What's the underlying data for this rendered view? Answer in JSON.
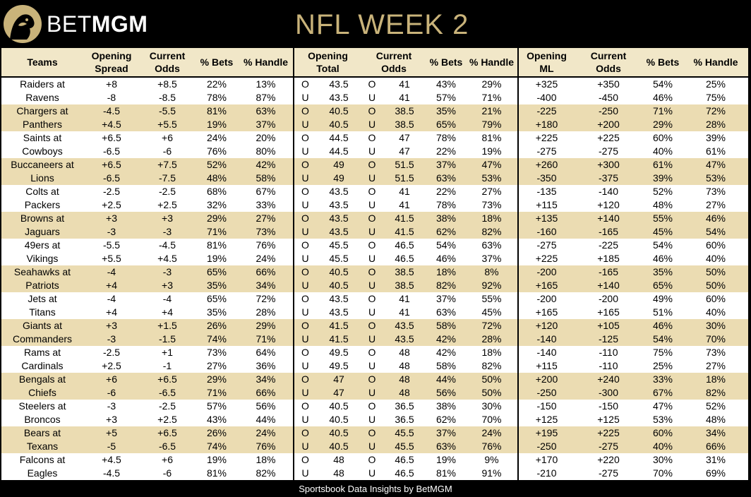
{
  "header": {
    "brand_light": "BET",
    "brand_bold": "MGM",
    "title": "NFL WEEK 2"
  },
  "colors": {
    "tan": "#ebdcb2",
    "header_bg": "#f1e7c8",
    "gold": "#c9b37a"
  },
  "columns": [
    [
      "Teams"
    ],
    [
      "Opening",
      "Spread"
    ],
    [
      "Current",
      "Odds"
    ],
    [
      "% Bets"
    ],
    [
      "% Handle"
    ],
    [
      "Opening",
      "Total"
    ],
    [
      "Current",
      "Odds"
    ],
    [
      "% Bets"
    ],
    [
      "% Handle"
    ],
    [
      "Opening",
      "ML"
    ],
    [
      "Current",
      "Odds"
    ],
    [
      "% Bets"
    ],
    [
      "% Handle"
    ]
  ],
  "rows": [
    [
      "Raiders at",
      "+8",
      "+8.5",
      "22%",
      "13%",
      "O",
      "43.5",
      "O",
      "41",
      "43%",
      "29%",
      "+325",
      "+350",
      "54%",
      "25%"
    ],
    [
      "Ravens",
      "-8",
      "-8.5",
      "78%",
      "87%",
      "U",
      "43.5",
      "U",
      "41",
      "57%",
      "71%",
      "-400",
      "-450",
      "46%",
      "75%"
    ],
    [
      "Chargers at",
      "-4.5",
      "-5.5",
      "81%",
      "63%",
      "O",
      "40.5",
      "O",
      "38.5",
      "35%",
      "21%",
      "-225",
      "-250",
      "71%",
      "72%"
    ],
    [
      "Panthers",
      "+4.5",
      "+5.5",
      "19%",
      "37%",
      "U",
      "40.5",
      "U",
      "38.5",
      "65%",
      "79%",
      "+180",
      "+200",
      "29%",
      "28%"
    ],
    [
      "Saints at",
      "+6.5",
      "+6",
      "24%",
      "20%",
      "O",
      "44.5",
      "O",
      "47",
      "78%",
      "81%",
      "+225",
      "+225",
      "60%",
      "39%"
    ],
    [
      "Cowboys",
      "-6.5",
      "-6",
      "76%",
      "80%",
      "U",
      "44.5",
      "U",
      "47",
      "22%",
      "19%",
      "-275",
      "-275",
      "40%",
      "61%"
    ],
    [
      "Buccaneers at",
      "+6.5",
      "+7.5",
      "52%",
      "42%",
      "O",
      "49",
      "O",
      "51.5",
      "37%",
      "47%",
      "+260",
      "+300",
      "61%",
      "47%"
    ],
    [
      "Lions",
      "-6.5",
      "-7.5",
      "48%",
      "58%",
      "U",
      "49",
      "U",
      "51.5",
      "63%",
      "53%",
      "-350",
      "-375",
      "39%",
      "53%"
    ],
    [
      "Colts at",
      "-2.5",
      "-2.5",
      "68%",
      "67%",
      "O",
      "43.5",
      "O",
      "41",
      "22%",
      "27%",
      "-135",
      "-140",
      "52%",
      "73%"
    ],
    [
      "Packers",
      "+2.5",
      "+2.5",
      "32%",
      "33%",
      "U",
      "43.5",
      "U",
      "41",
      "78%",
      "73%",
      "+115",
      "+120",
      "48%",
      "27%"
    ],
    [
      "Browns at",
      "+3",
      "+3",
      "29%",
      "27%",
      "O",
      "43.5",
      "O",
      "41.5",
      "38%",
      "18%",
      "+135",
      "+140",
      "55%",
      "46%"
    ],
    [
      "Jaguars",
      "-3",
      "-3",
      "71%",
      "73%",
      "U",
      "43.5",
      "U",
      "41.5",
      "62%",
      "82%",
      "-160",
      "-165",
      "45%",
      "54%"
    ],
    [
      "49ers at",
      "-5.5",
      "-4.5",
      "81%",
      "76%",
      "O",
      "45.5",
      "O",
      "46.5",
      "54%",
      "63%",
      "-275",
      "-225",
      "54%",
      "60%"
    ],
    [
      "Vikings",
      "+5.5",
      "+4.5",
      "19%",
      "24%",
      "U",
      "45.5",
      "U",
      "46.5",
      "46%",
      "37%",
      "+225",
      "+185",
      "46%",
      "40%"
    ],
    [
      "Seahawks at",
      "-4",
      "-3",
      "65%",
      "66%",
      "O",
      "40.5",
      "O",
      "38.5",
      "18%",
      "8%",
      "-200",
      "-165",
      "35%",
      "50%"
    ],
    [
      "Patriots",
      "+4",
      "+3",
      "35%",
      "34%",
      "U",
      "40.5",
      "U",
      "38.5",
      "82%",
      "92%",
      "+165",
      "+140",
      "65%",
      "50%"
    ],
    [
      "Jets at",
      "-4",
      "-4",
      "65%",
      "72%",
      "O",
      "43.5",
      "O",
      "41",
      "37%",
      "55%",
      "-200",
      "-200",
      "49%",
      "60%"
    ],
    [
      "Titans",
      "+4",
      "+4",
      "35%",
      "28%",
      "U",
      "43.5",
      "U",
      "41",
      "63%",
      "45%",
      "+165",
      "+165",
      "51%",
      "40%"
    ],
    [
      "Giants at",
      "+3",
      "+1.5",
      "26%",
      "29%",
      "O",
      "41.5",
      "O",
      "43.5",
      "58%",
      "72%",
      "+120",
      "+105",
      "46%",
      "30%"
    ],
    [
      "Commanders",
      "-3",
      "-1.5",
      "74%",
      "71%",
      "U",
      "41.5",
      "U",
      "43.5",
      "42%",
      "28%",
      "-140",
      "-125",
      "54%",
      "70%"
    ],
    [
      "Rams at",
      "-2.5",
      "+1",
      "73%",
      "64%",
      "O",
      "49.5",
      "O",
      "48",
      "42%",
      "18%",
      "-140",
      "-110",
      "75%",
      "73%"
    ],
    [
      "Cardinals",
      "+2.5",
      "-1",
      "27%",
      "36%",
      "U",
      "49.5",
      "U",
      "48",
      "58%",
      "82%",
      "+115",
      "-110",
      "25%",
      "27%"
    ],
    [
      "Bengals at",
      "+6",
      "+6.5",
      "29%",
      "34%",
      "O",
      "47",
      "O",
      "48",
      "44%",
      "50%",
      "+200",
      "+240",
      "33%",
      "18%"
    ],
    [
      "Chiefs",
      "-6",
      "-6.5",
      "71%",
      "66%",
      "U",
      "47",
      "U",
      "48",
      "56%",
      "50%",
      "-250",
      "-300",
      "67%",
      "82%"
    ],
    [
      "Steelers at",
      "-3",
      "-2.5",
      "57%",
      "56%",
      "O",
      "40.5",
      "O",
      "36.5",
      "38%",
      "30%",
      "-150",
      "-150",
      "47%",
      "52%"
    ],
    [
      "Broncos",
      "+3",
      "+2.5",
      "43%",
      "44%",
      "U",
      "40.5",
      "U",
      "36.5",
      "62%",
      "70%",
      "+125",
      "+125",
      "53%",
      "48%"
    ],
    [
      "Bears at",
      "+5",
      "+6.5",
      "26%",
      "24%",
      "O",
      "40.5",
      "O",
      "45.5",
      "37%",
      "24%",
      "+195",
      "+225",
      "60%",
      "34%"
    ],
    [
      "Texans",
      "-5",
      "-6.5",
      "74%",
      "76%",
      "U",
      "40.5",
      "U",
      "45.5",
      "63%",
      "76%",
      "-250",
      "-275",
      "40%",
      "66%"
    ],
    [
      "Falcons at",
      "+4.5",
      "+6",
      "19%",
      "18%",
      "O",
      "48",
      "O",
      "46.5",
      "19%",
      "9%",
      "+170",
      "+220",
      "30%",
      "31%"
    ],
    [
      "Eagles",
      "-4.5",
      "-6",
      "81%",
      "82%",
      "U",
      "48",
      "U",
      "46.5",
      "81%",
      "91%",
      "-210",
      "-275",
      "70%",
      "69%"
    ]
  ],
  "footer": "Sportsbook Data Insights by BetMGM"
}
